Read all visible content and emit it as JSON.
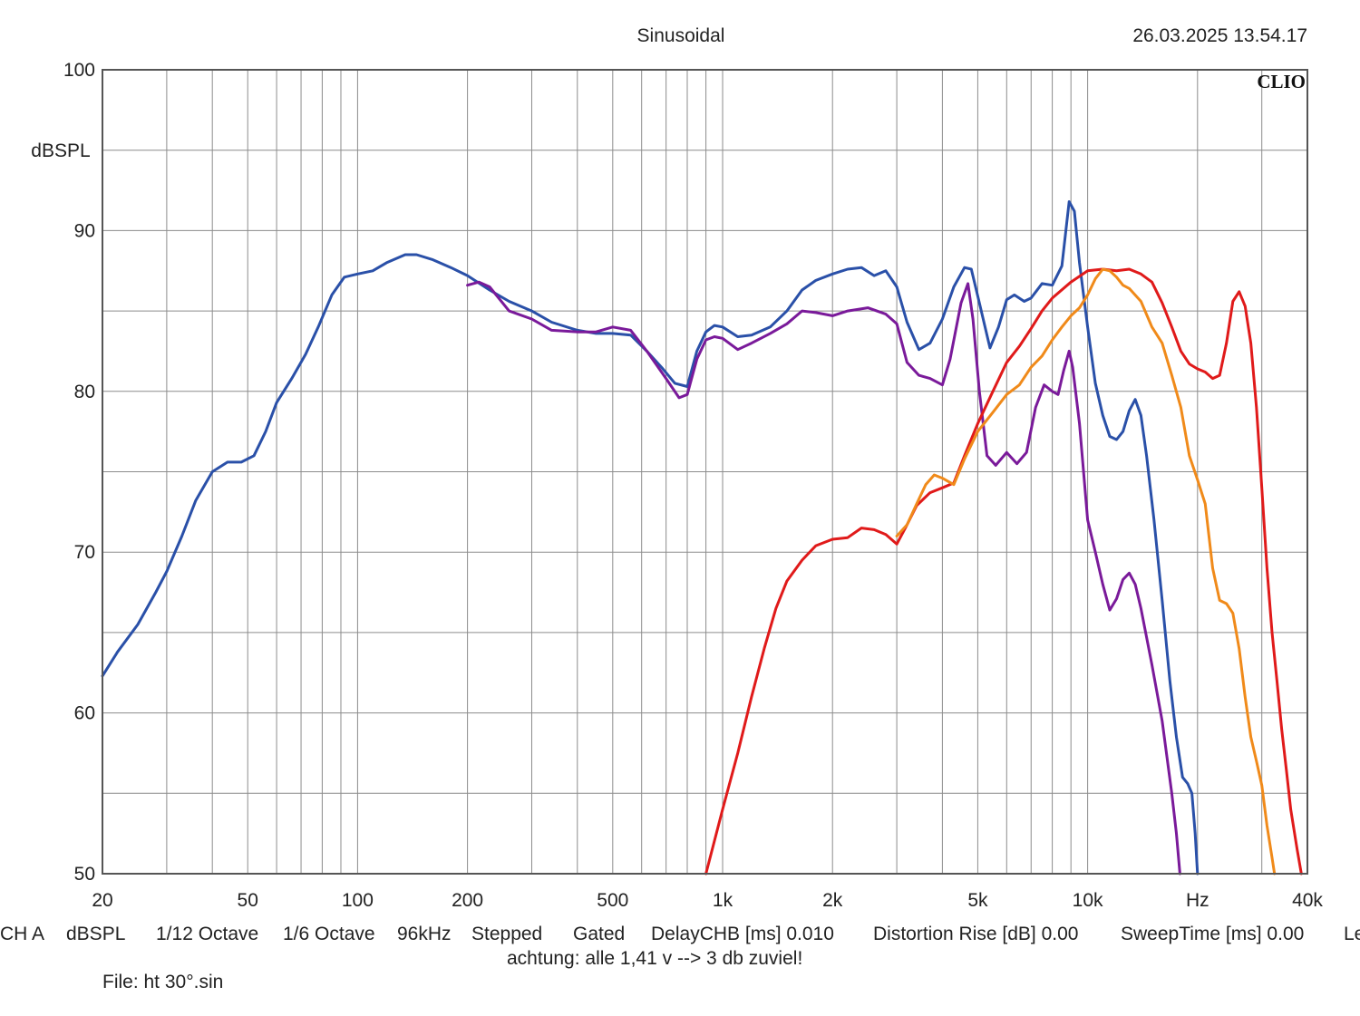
{
  "header": {
    "title": "Sinusoidal",
    "timestamp": "26.03.2025 13.54.17",
    "brand": "CLIO"
  },
  "status": {
    "items": [
      "CH A",
      "dBSPL",
      "1/12 Octave",
      "1/6 Octave",
      "96kHz",
      "Stepped",
      "Gated",
      "DelayCHB [ms] 0.010",
      "Distortion Rise [dB] 0.00",
      "SweepTime [ms] 0.00",
      "Le"
    ],
    "note": "achtung: alle 1,41 v --> 3 db zuviel!",
    "file": "File: ht 30°.sin"
  },
  "chart_data": {
    "type": "line",
    "title": "Sinusoidal",
    "xlabel": "Hz",
    "ylabel": "dBSPL",
    "xscale": "log",
    "xlim": [
      20,
      40000
    ],
    "ylim": [
      50,
      100
    ],
    "grid": true,
    "x_tick_labels": [
      "20",
      "50",
      "100",
      "200",
      "500",
      "1k",
      "2k",
      "5k",
      "10k",
      "Hz",
      "40k"
    ],
    "x_tick_values": [
      20,
      50,
      100,
      200,
      500,
      1000,
      2000,
      5000,
      10000,
      20000,
      40000
    ],
    "y_tick_labels": [
      "100",
      "90",
      "80",
      "70",
      "60",
      "50"
    ],
    "y_tick_values": [
      100,
      90,
      80,
      70,
      60,
      50
    ],
    "colors": {
      "blue": "#2a50a8",
      "purple": "#7a1a9a",
      "red": "#e01a1a",
      "orange": "#f08a1a",
      "grid": "#8c8c8c",
      "frame": "#555555"
    },
    "series": [
      {
        "color": "#2a50a8",
        "points": [
          [
            20,
            62.3
          ],
          [
            22,
            63.8
          ],
          [
            25,
            65.5
          ],
          [
            28,
            67.5
          ],
          [
            30,
            68.8
          ],
          [
            33,
            71
          ],
          [
            36,
            73.2
          ],
          [
            40,
            75
          ],
          [
            44,
            75.6
          ],
          [
            48,
            75.6
          ],
          [
            52,
            76
          ],
          [
            56,
            77.5
          ],
          [
            60,
            79.3
          ],
          [
            66,
            80.8
          ],
          [
            72,
            82.3
          ],
          [
            78,
            84
          ],
          [
            85,
            86
          ],
          [
            92,
            87.1
          ],
          [
            100,
            87.3
          ],
          [
            110,
            87.5
          ],
          [
            120,
            88
          ],
          [
            135,
            88.5
          ],
          [
            145,
            88.5
          ],
          [
            160,
            88.2
          ],
          [
            180,
            87.7
          ],
          [
            200,
            87.2
          ],
          [
            230,
            86.3
          ],
          [
            260,
            85.6
          ],
          [
            300,
            85
          ],
          [
            340,
            84.3
          ],
          [
            400,
            83.8
          ],
          [
            450,
            83.6
          ],
          [
            500,
            83.6
          ],
          [
            560,
            83.5
          ],
          [
            620,
            82.5
          ],
          [
            680,
            81.5
          ],
          [
            740,
            80.5
          ],
          [
            800,
            80.3
          ],
          [
            850,
            82.5
          ],
          [
            900,
            83.7
          ],
          [
            950,
            84.1
          ],
          [
            1000,
            84
          ],
          [
            1100,
            83.4
          ],
          [
            1200,
            83.5
          ],
          [
            1350,
            84
          ],
          [
            1500,
            85
          ],
          [
            1650,
            86.3
          ],
          [
            1800,
            86.9
          ],
          [
            2000,
            87.3
          ],
          [
            2200,
            87.6
          ],
          [
            2400,
            87.7
          ],
          [
            2600,
            87.2
          ],
          [
            2800,
            87.5
          ],
          [
            3000,
            86.5
          ],
          [
            3200,
            84.3
          ],
          [
            3450,
            82.6
          ],
          [
            3700,
            83
          ],
          [
            4000,
            84.5
          ],
          [
            4300,
            86.5
          ],
          [
            4600,
            87.7
          ],
          [
            4800,
            87.6
          ],
          [
            5050,
            85.5
          ],
          [
            5400,
            82.7
          ],
          [
            5700,
            84
          ],
          [
            6000,
            85.7
          ],
          [
            6300,
            86
          ],
          [
            6700,
            85.6
          ],
          [
            7000,
            85.8
          ],
          [
            7500,
            86.7
          ],
          [
            8000,
            86.6
          ],
          [
            8500,
            87.8
          ],
          [
            8900,
            91.8
          ],
          [
            9200,
            91.2
          ],
          [
            9500,
            88
          ],
          [
            10000,
            84
          ],
          [
            10500,
            80.5
          ],
          [
            11000,
            78.5
          ],
          [
            11500,
            77.2
          ],
          [
            12000,
            77
          ],
          [
            12500,
            77.5
          ],
          [
            13000,
            78.8
          ],
          [
            13500,
            79.5
          ],
          [
            14000,
            78.5
          ],
          [
            14500,
            76
          ],
          [
            15200,
            72
          ],
          [
            16000,
            67
          ],
          [
            16800,
            62
          ],
          [
            17500,
            58.5
          ],
          [
            18200,
            56
          ],
          [
            18800,
            55.6
          ],
          [
            19300,
            55
          ],
          [
            19700,
            52.5
          ],
          [
            20000,
            50
          ]
        ]
      },
      {
        "color": "#7a1a9a",
        "points": [
          [
            200,
            86.6
          ],
          [
            215,
            86.8
          ],
          [
            230,
            86.5
          ],
          [
            260,
            85
          ],
          [
            300,
            84.5
          ],
          [
            340,
            83.8
          ],
          [
            400,
            83.7
          ],
          [
            450,
            83.7
          ],
          [
            500,
            84
          ],
          [
            560,
            83.8
          ],
          [
            620,
            82.5
          ],
          [
            700,
            80.8
          ],
          [
            760,
            79.6
          ],
          [
            800,
            79.8
          ],
          [
            850,
            82
          ],
          [
            900,
            83.2
          ],
          [
            950,
            83.4
          ],
          [
            1000,
            83.3
          ],
          [
            1100,
            82.6
          ],
          [
            1200,
            83
          ],
          [
            1350,
            83.6
          ],
          [
            1500,
            84.2
          ],
          [
            1650,
            85
          ],
          [
            1800,
            84.9
          ],
          [
            2000,
            84.7
          ],
          [
            2200,
            85
          ],
          [
            2500,
            85.2
          ],
          [
            2800,
            84.8
          ],
          [
            3000,
            84.2
          ],
          [
            3200,
            81.8
          ],
          [
            3450,
            81
          ],
          [
            3700,
            80.8
          ],
          [
            4000,
            80.4
          ],
          [
            4200,
            82
          ],
          [
            4500,
            85.5
          ],
          [
            4700,
            86.7
          ],
          [
            4850,
            84.5
          ],
          [
            5050,
            80
          ],
          [
            5300,
            76
          ],
          [
            5600,
            75.4
          ],
          [
            6000,
            76.2
          ],
          [
            6400,
            75.5
          ],
          [
            6800,
            76.2
          ],
          [
            7200,
            79
          ],
          [
            7600,
            80.4
          ],
          [
            8000,
            80
          ],
          [
            8300,
            79.8
          ],
          [
            8600,
            81.3
          ],
          [
            8900,
            82.5
          ],
          [
            9100,
            81.5
          ],
          [
            9500,
            78
          ],
          [
            10000,
            72
          ],
          [
            10500,
            70
          ],
          [
            11000,
            68
          ],
          [
            11500,
            66.4
          ],
          [
            12000,
            67.1
          ],
          [
            12500,
            68.3
          ],
          [
            13000,
            68.7
          ],
          [
            13500,
            68
          ],
          [
            14000,
            66.5
          ],
          [
            15000,
            63
          ],
          [
            16000,
            59.5
          ],
          [
            17000,
            55
          ],
          [
            17500,
            52.5
          ],
          [
            17900,
            50
          ]
        ]
      },
      {
        "color": "#e01a1a",
        "points": [
          [
            900,
            50
          ],
          [
            1000,
            54
          ],
          [
            1100,
            57.5
          ],
          [
            1200,
            61
          ],
          [
            1300,
            64
          ],
          [
            1400,
            66.5
          ],
          [
            1500,
            68.2
          ],
          [
            1650,
            69.5
          ],
          [
            1800,
            70.4
          ],
          [
            2000,
            70.8
          ],
          [
            2200,
            70.9
          ],
          [
            2400,
            71.5
          ],
          [
            2600,
            71.4
          ],
          [
            2800,
            71.1
          ],
          [
            3000,
            70.5
          ],
          [
            3200,
            71.7
          ],
          [
            3400,
            72.9
          ],
          [
            3700,
            73.7
          ],
          [
            4000,
            74
          ],
          [
            4300,
            74.3
          ],
          [
            4600,
            76
          ],
          [
            5000,
            78
          ],
          [
            5500,
            80
          ],
          [
            6000,
            81.8
          ],
          [
            6500,
            82.8
          ],
          [
            7000,
            83.9
          ],
          [
            7500,
            85
          ],
          [
            8000,
            85.8
          ],
          [
            9000,
            86.8
          ],
          [
            10000,
            87.5
          ],
          [
            11000,
            87.6
          ],
          [
            12000,
            87.5
          ],
          [
            13000,
            87.6
          ],
          [
            14000,
            87.3
          ],
          [
            15000,
            86.8
          ],
          [
            16000,
            85.5
          ],
          [
            17000,
            84
          ],
          [
            18000,
            82.5
          ],
          [
            19000,
            81.7
          ],
          [
            20000,
            81.4
          ],
          [
            21000,
            81.2
          ],
          [
            22000,
            80.8
          ],
          [
            23000,
            81
          ],
          [
            24000,
            83
          ],
          [
            25000,
            85.6
          ],
          [
            26000,
            86.2
          ],
          [
            27000,
            85.3
          ],
          [
            28000,
            83
          ],
          [
            29000,
            79
          ],
          [
            30000,
            74
          ],
          [
            31000,
            69
          ],
          [
            32000,
            65
          ],
          [
            33000,
            62
          ],
          [
            34000,
            59
          ],
          [
            35000,
            56.5
          ],
          [
            36000,
            54
          ],
          [
            37500,
            51.5
          ],
          [
            38500,
            50
          ]
        ]
      },
      {
        "color": "#f08a1a",
        "points": [
          [
            3000,
            71
          ],
          [
            3200,
            71.7
          ],
          [
            3400,
            73
          ],
          [
            3600,
            74.2
          ],
          [
            3800,
            74.8
          ],
          [
            4000,
            74.6
          ],
          [
            4300,
            74.2
          ],
          [
            4600,
            75.8
          ],
          [
            5000,
            77.5
          ],
          [
            5500,
            78.7
          ],
          [
            6000,
            79.8
          ],
          [
            6500,
            80.4
          ],
          [
            7000,
            81.5
          ],
          [
            7500,
            82.2
          ],
          [
            8000,
            83.2
          ],
          [
            8500,
            84
          ],
          [
            9000,
            84.7
          ],
          [
            9500,
            85.2
          ],
          [
            10000,
            86
          ],
          [
            10500,
            87
          ],
          [
            11000,
            87.6
          ],
          [
            11500,
            87.5
          ],
          [
            12000,
            87.1
          ],
          [
            12500,
            86.6
          ],
          [
            13000,
            86.4
          ],
          [
            14000,
            85.6
          ],
          [
            15000,
            84
          ],
          [
            16000,
            83
          ],
          [
            17000,
            81
          ],
          [
            18000,
            79
          ],
          [
            19000,
            76
          ],
          [
            20000,
            74.5
          ],
          [
            21000,
            73
          ],
          [
            22000,
            69
          ],
          [
            23000,
            67
          ],
          [
            24000,
            66.8
          ],
          [
            25000,
            66.2
          ],
          [
            26000,
            64
          ],
          [
            27000,
            61
          ],
          [
            28000,
            58.5
          ],
          [
            29000,
            57
          ],
          [
            30000,
            55.5
          ],
          [
            31000,
            53
          ],
          [
            32000,
            51
          ],
          [
            32500,
            50
          ]
        ]
      }
    ]
  }
}
